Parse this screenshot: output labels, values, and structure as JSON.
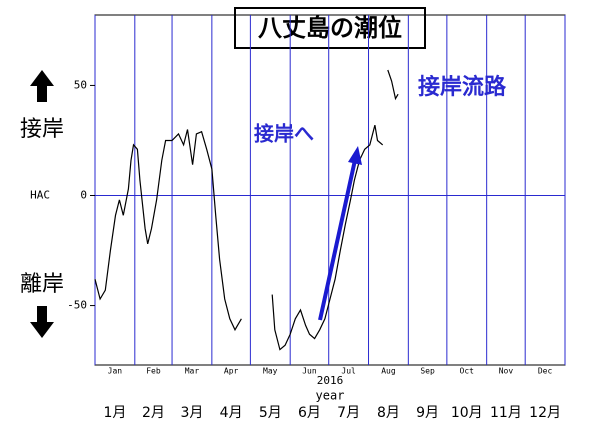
{
  "chart_data": {
    "type": "line",
    "title": "八丈島の潮位",
    "x": [
      0,
      4,
      8,
      12,
      16,
      19,
      22,
      26,
      28,
      30,
      33,
      35,
      39,
      41,
      44,
      48,
      52,
      55,
      60,
      65,
      69,
      72,
      76,
      79,
      83,
      87,
      91,
      94,
      97,
      101,
      105,
      109,
      111,
      114,
      130,
      138,
      140,
      144,
      148,
      152,
      156,
      160,
      164,
      167,
      171,
      175,
      179,
      183,
      187,
      191,
      195,
      199,
      202,
      206,
      210,
      214,
      218,
      220,
      224,
      226,
      228,
      231,
      234,
      236
    ],
    "values": [
      -38,
      -47,
      -43,
      -25,
      -9,
      -2,
      -9,
      3,
      16,
      23,
      21,
      7,
      -15,
      -22,
      -15,
      -2,
      16,
      25,
      25,
      28,
      23,
      30,
      14,
      28,
      29,
      21,
      12,
      -9,
      -29,
      -47,
      -56,
      -61,
      -59,
      -56,
      null,
      -45,
      -61,
      -70,
      -68,
      -63,
      -56,
      -52,
      -59,
      -63,
      -65,
      -61,
      -56,
      -47,
      -38,
      -25,
      -13,
      -2,
      7,
      16,
      21,
      23,
      32,
      25,
      23,
      null,
      57,
      52,
      44,
      46
    ],
    "color": "#000000",
    "xlim": [
      0,
      366
    ],
    "ylim": [
      -77,
      82
    ],
    "yticks": [
      -50,
      0,
      50
    ],
    "zero_label": "HAC",
    "zero_line_color": "#2a2ad0",
    "month_bounds": [
      0,
      31,
      60,
      91,
      121,
      152,
      182,
      213,
      244,
      274,
      305,
      335,
      366
    ],
    "grid_color": "#2a2ad0",
    "months": [
      "Jan",
      "Feb",
      "Mar",
      "Apr",
      "May",
      "Jun",
      "Jul",
      "Aug",
      "Sep",
      "Oct",
      "Nov",
      "Dec"
    ],
    "months_jp": [
      "1月",
      "2月",
      "3月",
      "4月",
      "5月",
      "6月",
      "7月",
      "8月",
      "9月",
      "10月",
      "11月",
      "12月"
    ],
    "x_sublabel": "2016",
    "xlabel": "year",
    "side_labels": {
      "up": "接岸",
      "down": "離岸"
    },
    "annotations": [
      "接岸へ",
      "接岸流路"
    ]
  }
}
